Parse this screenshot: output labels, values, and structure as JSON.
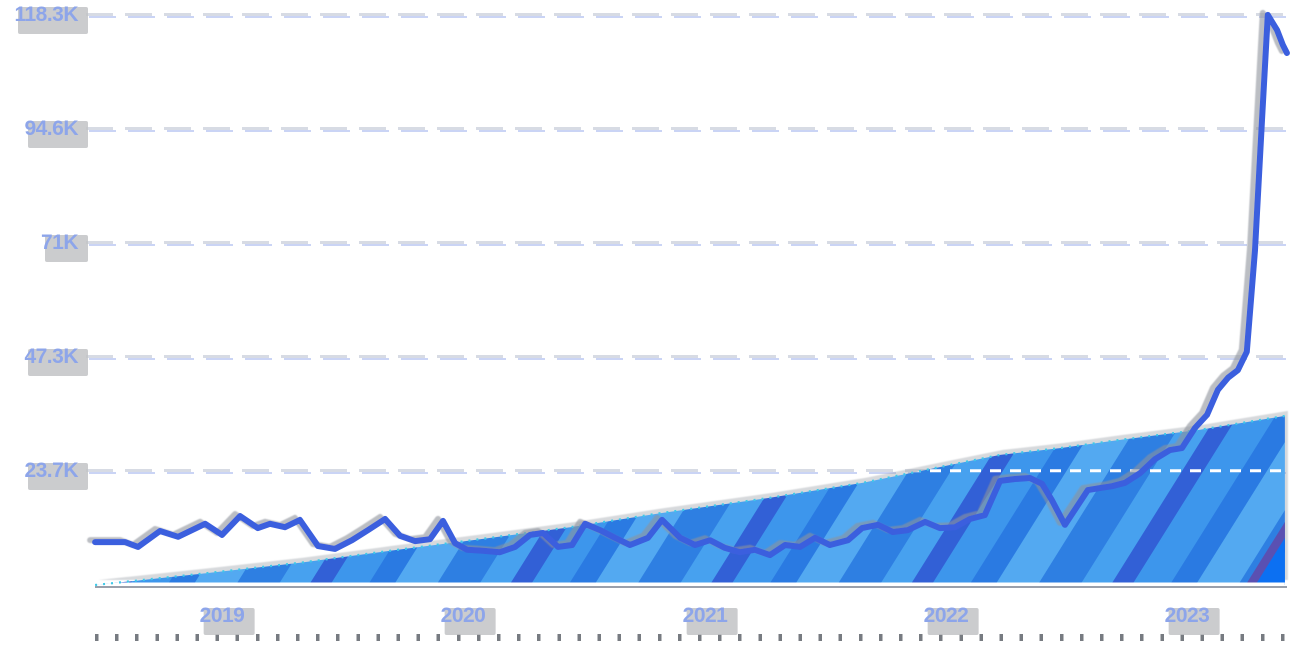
{
  "chart_data": {
    "type": "line",
    "title": "",
    "xlabel": "",
    "ylabel": "",
    "unit": "K (thousands)",
    "grid": "dashed",
    "legend": "none",
    "x_axis": {
      "tick_labels": [
        "2019",
        "2020",
        "2021",
        "2022",
        "2023"
      ],
      "tick_values": [
        2019,
        2020,
        2021,
        2022,
        2023
      ],
      "range": [
        2018.47,
        2023.41
      ]
    },
    "y_axis": {
      "tick_labels": [
        "23.7K",
        "47.3K",
        "71K",
        "94.6K",
        "118.3K"
      ],
      "tick_values": [
        23.7,
        47.3,
        71,
        94.6,
        118.3
      ],
      "unit": "K",
      "range": [
        0,
        121
      ]
    },
    "reference_line": {
      "value": 23.7,
      "unit": "K",
      "style": "white-dashed"
    },
    "series": [
      {
        "name": "striped-area",
        "type": "area",
        "x": [
          2018.474,
          2018.909,
          2019.323,
          2019.696,
          2020.069,
          2020.443,
          2020.816,
          2021.271,
          2021.657,
          2022.017,
          2022.225,
          2022.473,
          2022.722,
          2023.054,
          2023.406
        ],
        "values": [
          0,
          2.3,
          4.6,
          7.1,
          9.5,
          12.0,
          14.9,
          18.1,
          21.2,
          24.9,
          27.0,
          28.4,
          30.1,
          32.2,
          35.1
        ]
      },
      {
        "name": "trend-line",
        "type": "line",
        "x": [
          2018.474,
          2018.598,
          2018.652,
          2018.743,
          2018.818,
          2018.93,
          2019.0,
          2019.075,
          2019.149,
          2019.199,
          2019.261,
          2019.323,
          2019.398,
          2019.468,
          2019.539,
          2019.605,
          2019.676,
          2019.738,
          2019.8,
          2019.862,
          2019.916,
          2019.966,
          2020.016,
          2020.082,
          2020.152,
          2020.215,
          2020.277,
          2020.331,
          2020.393,
          2020.451,
          2020.505,
          2020.567,
          2020.629,
          2020.691,
          2020.766,
          2020.824,
          2020.899,
          2020.961,
          2021.023,
          2021.085,
          2021.147,
          2021.209,
          2021.271,
          2021.334,
          2021.396,
          2021.458,
          2021.52,
          2021.595,
          2021.653,
          2021.719,
          2021.781,
          2021.843,
          2021.914,
          2021.976,
          2022.038,
          2022.1,
          2022.162,
          2022.225,
          2022.287,
          2022.349,
          2022.399,
          2022.44,
          2022.494,
          2022.548,
          2022.589,
          2022.639,
          2022.689,
          2022.743,
          2022.805,
          2022.867,
          2022.929,
          2022.979,
          2023.033,
          2023.083,
          2023.128,
          2023.17,
          2023.211,
          2023.248,
          2023.282,
          2023.311,
          2023.335,
          2023.373,
          2023.397,
          2023.414
        ],
        "values": [
          8.9,
          8.9,
          7.9,
          11.2,
          10.0,
          12.7,
          10.4,
          14.3,
          11.8,
          12.7,
          12.0,
          13.5,
          8.1,
          7.5,
          9.3,
          11.4,
          13.7,
          10.2,
          9.1,
          9.5,
          13.3,
          8.7,
          7.3,
          7.1,
          6.8,
          7.9,
          10.4,
          10.8,
          7.9,
          8.3,
          12.7,
          11.4,
          9.8,
          8.3,
          9.8,
          13.5,
          9.8,
          8.3,
          9.3,
          7.7,
          6.8,
          7.3,
          6.2,
          8.3,
          7.9,
          9.8,
          8.3,
          9.3,
          11.8,
          12.5,
          11.0,
          11.4,
          13.1,
          11.8,
          12.0,
          13.7,
          14.5,
          21.6,
          22.0,
          22.2,
          21.0,
          17.6,
          12.5,
          16.6,
          19.7,
          20.1,
          20.5,
          21.2,
          23.2,
          26.1,
          28.0,
          28.4,
          32.6,
          35.3,
          40.5,
          43.0,
          44.6,
          48.4,
          69.5,
          96.5,
          118.3,
          115.2,
          112.1,
          110.4
        ]
      }
    ]
  },
  "colors": {
    "line": "#3a5ede",
    "area_stripes": [
      "#2e7fe2",
      "#47a1ef",
      "#3060d6",
      "#3e96ec",
      "#2a7ae2",
      "#52a9f1"
    ],
    "accent_purple": "#5a50b2",
    "accent_bright_blue": "#0c70f2",
    "accent_teal": "#14a06c",
    "area_edge_specks": "#3ec9e8",
    "reference_line": "#ffffff",
    "grid": "#d7dbe4",
    "grid_tint": "#aebdf0",
    "axis_label": "#8da5ea",
    "label_ghost": "#c2c3c6",
    "axis_line": "#9aa0ab",
    "minor_tick": "#4a4f57"
  }
}
